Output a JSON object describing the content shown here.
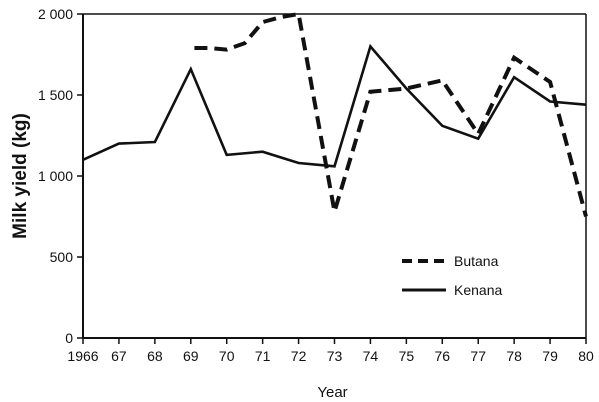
{
  "chart_data": {
    "type": "line",
    "xlabel": "Year",
    "ylabel": "Milk yield (kg)",
    "x": [
      1966,
      1967,
      1968,
      1969,
      1970,
      1971,
      1972,
      1973,
      1974,
      1975,
      1976,
      1977,
      1978,
      1979,
      1980
    ],
    "x_tick_labels": [
      "1966",
      "67",
      "68",
      "69",
      "70",
      "71",
      "72",
      "73",
      "74",
      "75",
      "76",
      "77",
      "78",
      "79",
      "80"
    ],
    "y_ticks": [
      0,
      500,
      1000,
      1500,
      2000
    ],
    "y_tick_labels": [
      "0",
      "500",
      "1 000",
      "1 500",
      "2 000"
    ],
    "xlim": [
      1966,
      1980
    ],
    "ylim": [
      0,
      2000
    ],
    "grid": false,
    "legend_position": "lower-right",
    "series": [
      {
        "name": "Butana",
        "style": "dashed",
        "color": "#111111",
        "x": [
          1969.1,
          1969.5,
          1970,
          1970.5,
          1971,
          1971.5,
          1972,
          1973,
          1974,
          1975,
          1976,
          1977,
          1978,
          1979,
          1980
        ],
        "values": [
          1790,
          1790,
          1780,
          1820,
          1950,
          1980,
          2000,
          780,
          1520,
          1540,
          1590,
          1260,
          1730,
          1580,
          750
        ]
      },
      {
        "name": "Kenana",
        "style": "solid",
        "color": "#111111",
        "x": [
          1966,
          1967,
          1968,
          1969,
          1970,
          1971,
          1972,
          1973,
          1974,
          1975,
          1976,
          1977,
          1978,
          1979,
          1980
        ],
        "values": [
          1100,
          1200,
          1210,
          1660,
          1130,
          1150,
          1080,
          1060,
          1800,
          1540,
          1310,
          1230,
          1610,
          1460,
          1440
        ]
      }
    ]
  }
}
